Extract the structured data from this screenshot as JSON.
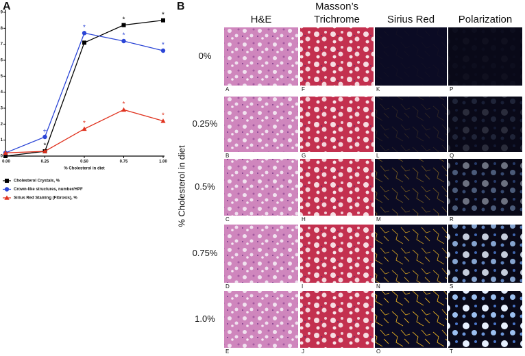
{
  "panel_labels": [
    "A",
    "B"
  ],
  "chart_data": {
    "type": "line",
    "x_label": "% Cholesterol in diet",
    "x": [
      0,
      0.25,
      0.5,
      0.75,
      1
    ],
    "xlim": [
      0,
      1
    ],
    "xticks": [
      {
        "value": 0,
        "label": "0.00"
      },
      {
        "value": 0.25,
        "label": "0.25"
      },
      {
        "value": 0.5,
        "label": "0.50"
      },
      {
        "value": 0.75,
        "label": "0.75"
      },
      {
        "value": 1,
        "label": "1.00"
      }
    ],
    "ylim": [
      0,
      9
    ],
    "yticks": [
      0,
      1,
      2,
      3,
      4,
      5,
      6,
      7,
      8,
      9
    ],
    "series": [
      {
        "name": "Cholesterol Crystals, %",
        "color": "#000000",
        "marker": "square",
        "values": [
          0,
          0.3,
          7.1,
          8.2,
          8.5
        ],
        "annotations": [
          null,
          "*",
          "*",
          "*",
          "*"
        ]
      },
      {
        "name": "Crown-like structures, number/HPF",
        "color": "#2b45d6",
        "marker": "circle",
        "values": [
          0.2,
          1.2,
          7.7,
          7.2,
          6.6
        ],
        "annotations": [
          null,
          "+",
          "*",
          "*",
          "*"
        ]
      },
      {
        "name": "Sirius Red Staining (Fibrosis), %",
        "color": "#e0321e",
        "marker": "triangle",
        "values": [
          0.2,
          0.3,
          1.7,
          2.9,
          2.2
        ],
        "annotations": [
          null,
          null,
          "*",
          "*",
          "*"
        ]
      }
    ]
  },
  "image_grid": {
    "columns": [
      [
        "H&E"
      ],
      [
        "Masson’s",
        "Trichrome"
      ],
      [
        "Sirius Red"
      ],
      [
        "Polarization"
      ]
    ],
    "rows": [
      "0%",
      "0.25%",
      "0.5%",
      "0.75%",
      "1.0%"
    ],
    "y_label": "% Cholesterol in diet",
    "tile_labels": [
      [
        "A",
        "F",
        "K",
        "P"
      ],
      [
        "B",
        "G",
        "L",
        "Q"
      ],
      [
        "C",
        "H",
        "M",
        "R"
      ],
      [
        "D",
        "I",
        "N",
        "S"
      ],
      [
        "E",
        "J",
        "O",
        "T"
      ]
    ]
  }
}
